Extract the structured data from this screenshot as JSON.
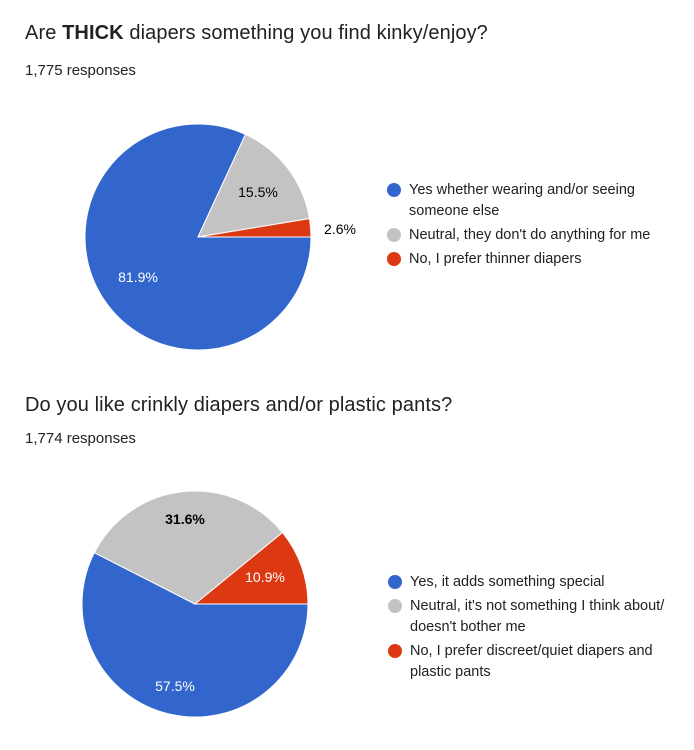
{
  "colors": {
    "blue": "#3366cc",
    "gray": "#c3c3c3",
    "red": "#dc3912"
  },
  "chart_data": [
    {
      "type": "pie",
      "title_pre": "Are ",
      "title_bold": "THICK",
      "title_post": " diapers something you find kinky/enjoy?",
      "responses": "1,775 responses",
      "legend_position": "right",
      "slices": [
        {
          "label": "Yes whether wearing and/or seeing someone else",
          "value": 81.9,
          "display": "81.9%",
          "color": "#3366cc"
        },
        {
          "label": "Neutral, they don't do anything for me",
          "value": 15.5,
          "display": "15.5%",
          "color": "#c3c3c3"
        },
        {
          "label": "No, I prefer thinner diapers",
          "value": 2.6,
          "display": "2.6%",
          "color": "#dc3912"
        }
      ]
    },
    {
      "type": "pie",
      "title_pre": "Do you like crinkly diapers and/or plastic pants?",
      "title_bold": "",
      "title_post": "",
      "responses": "1,774 responses",
      "legend_position": "right",
      "slices": [
        {
          "label": "Yes, it adds something special",
          "value": 57.5,
          "display": "57.5%",
          "color": "#3366cc"
        },
        {
          "label": "Neutral, it's not something I think about/ doesn't bother me",
          "value": 31.6,
          "display": "31.6%",
          "color": "#c3c3c3"
        },
        {
          "label": "No, I prefer discreet/quiet diapers and plastic pants",
          "value": 10.9,
          "display": "10.9%",
          "color": "#dc3912"
        }
      ]
    }
  ]
}
